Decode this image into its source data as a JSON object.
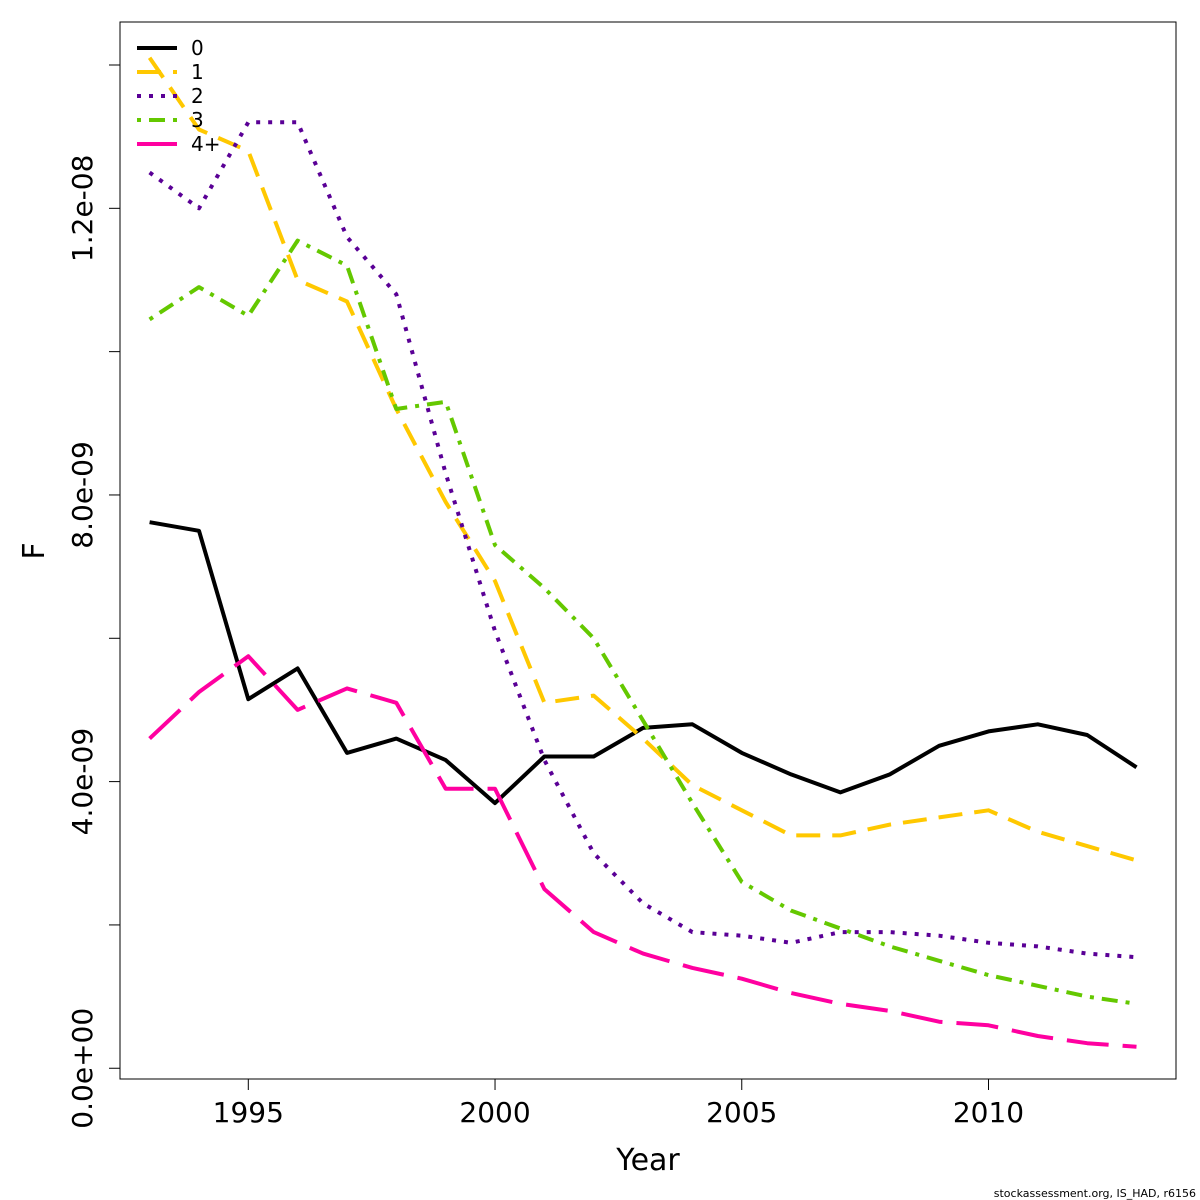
{
  "chart_data": {
    "type": "line",
    "xlabel": "Year",
    "ylabel": "F",
    "xlim": [
      1992.4,
      2013.8
    ],
    "ylim": [
      -1.5e-10,
      1.46e-08
    ],
    "x_ticks": [
      1995,
      2000,
      2005,
      2010
    ],
    "x_tick_labels": [
      "1995",
      "2000",
      "2005",
      "2010"
    ],
    "y_ticks": [
      0,
      2e-09,
      4e-09,
      6e-09,
      8e-09,
      1e-08,
      1.2e-08,
      1.4e-08
    ],
    "y_tick_labels": [
      "0.0e+00",
      "",
      "4.0e-09",
      "",
      "8.0e-09",
      "",
      "1.2e-08",
      ""
    ],
    "legend_position": "top-left",
    "grid": false,
    "x": [
      1993,
      1994,
      1995,
      1996,
      1997,
      1998,
      1999,
      2000,
      2001,
      2002,
      2003,
      2004,
      2005,
      2006,
      2007,
      2008,
      2009,
      2010,
      2011,
      2012,
      2013
    ],
    "series": [
      {
        "name": "0",
        "color": "#000000",
        "dash": "solid",
        "values": [
          7.62e-09,
          7.5e-09,
          5.15e-09,
          5.58e-09,
          4.4e-09,
          4.6e-09,
          4.3e-09,
          3.7e-09,
          4.35e-09,
          4.35e-09,
          4.75e-09,
          4.8e-09,
          4.4e-09,
          4.1e-09,
          3.85e-09,
          4.1e-09,
          4.5e-09,
          4.7e-09,
          4.8e-09,
          4.65e-09,
          4.2e-09
        ]
      },
      {
        "name": "1",
        "color": "#FFC800",
        "dash": "dashed",
        "values": [
          1.41e-08,
          1.31e-08,
          1.28e-08,
          1.1e-08,
          1.07e-08,
          9.2e-09,
          7.9e-09,
          6.8e-09,
          5.1e-09,
          5.2e-09,
          4.6e-09,
          3.95e-09,
          3.6e-09,
          3.25e-09,
          3.25e-09,
          3.4e-09,
          3.5e-09,
          3.6e-09,
          3.3e-09,
          3.1e-09,
          2.9e-09
        ]
      },
      {
        "name": "2",
        "color": "#5A0096",
        "dash": "dotted",
        "values": [
          1.25e-08,
          1.2e-08,
          1.32e-08,
          1.32e-08,
          1.16e-08,
          1.08e-08,
          8.3e-09,
          6.1e-09,
          4.3e-09,
          3e-09,
          2.3e-09,
          1.9e-09,
          1.85e-09,
          1.75e-09,
          1.9e-09,
          1.9e-09,
          1.85e-09,
          1.75e-09,
          1.7e-09,
          1.6e-09,
          1.55e-09
        ]
      },
      {
        "name": "3",
        "color": "#64C800",
        "dash": "dotdash",
        "values": [
          1.045e-08,
          1.09e-08,
          1.05e-08,
          1.155e-08,
          1.12e-08,
          9.2e-09,
          9.3e-09,
          7.3e-09,
          6.7e-09,
          6e-09,
          4.85e-09,
          3.7e-09,
          2.6e-09,
          2.2e-09,
          1.95e-09,
          1.7e-09,
          1.5e-09,
          1.3e-09,
          1.15e-09,
          1e-09,
          9e-10
        ]
      },
      {
        "name": "4+",
        "color": "#FF00A0",
        "dash": "longdash",
        "values": [
          4.6e-09,
          5.25e-09,
          5.75e-09,
          5e-09,
          5.3e-09,
          5.1e-09,
          3.9e-09,
          3.9e-09,
          2.5e-09,
          1.9e-09,
          1.6e-09,
          1.4e-09,
          1.25e-09,
          1.05e-09,
          9e-10,
          8e-10,
          6.5e-10,
          6e-10,
          4.5e-10,
          3.5e-10,
          3e-10
        ]
      }
    ]
  },
  "credit": "stockassessment.org, IS_HAD, r6156"
}
